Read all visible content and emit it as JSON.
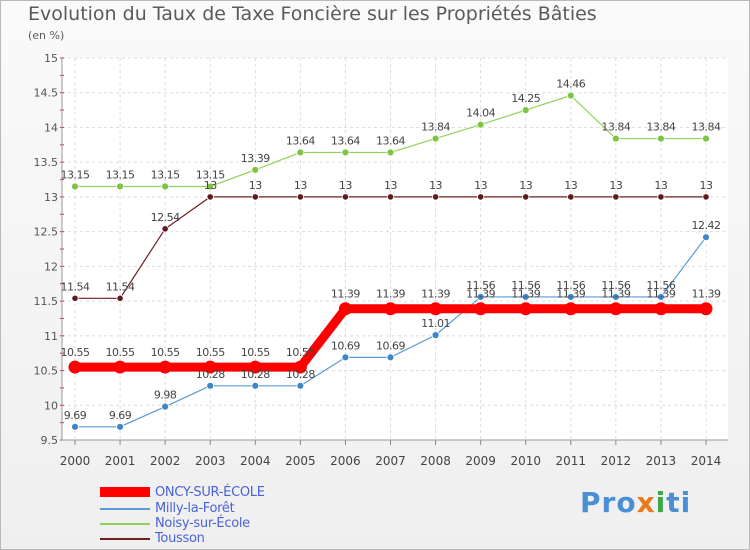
{
  "title": "Evolution du Taux de Taxe Foncière sur les Propriétés Bâties",
  "subtitle": "(en %)",
  "brand": {
    "parts": [
      "Pro",
      "x",
      "i",
      "ti"
    ],
    "colors": [
      "#4a8fd6",
      "#e87a1c",
      "#3aa844",
      "#4a8fd6"
    ]
  },
  "chart_data": {
    "type": "line",
    "title": "Evolution du Taux de Taxe Foncière sur les Propriétés Bâties",
    "ylabel": "(en %)",
    "xlabel": "",
    "ylim": [
      9.5,
      15
    ],
    "yticks": [
      "9.5",
      "10",
      "10.5",
      "11",
      "11.5",
      "12",
      "12.5",
      "13",
      "13.5",
      "14",
      "14.5",
      "15"
    ],
    "ytick_values": [
      9.5,
      10,
      10.5,
      11,
      11.5,
      12,
      12.5,
      13,
      13.5,
      14,
      14.5,
      15
    ],
    "categories": [
      "2000",
      "2001",
      "2002",
      "2003",
      "2004",
      "2005",
      "2006",
      "2007",
      "2008",
      "2009",
      "2010",
      "2011",
      "2012",
      "2013",
      "2014"
    ],
    "grid": true,
    "legend_position": "bottom-left",
    "series": [
      {
        "name": "Noisy-sur-École",
        "color": "#8fd25a",
        "marker": "#7cc443",
        "width": 1.2,
        "radius": 3.5,
        "label_offset": -12,
        "values": [
          13.15,
          13.15,
          13.15,
          13.15,
          13.39,
          13.64,
          13.64,
          13.64,
          13.84,
          14.04,
          14.25,
          14.46,
          13.84,
          13.84,
          13.84
        ],
        "labels": [
          "13.15",
          "13.15",
          "13.15",
          "13.15",
          "13.39",
          "13.64",
          "13.64",
          "13.64",
          "13.84",
          "14.04",
          "14.25",
          "14.46",
          "13.84",
          "13.84",
          "13.84"
        ]
      },
      {
        "name": "Tousson",
        "color": "#6b1f22",
        "marker": "#5e1a1d",
        "width": 1.2,
        "radius": 3.2,
        "label_offset": -12,
        "values": [
          11.54,
          11.54,
          12.54,
          13,
          13,
          13,
          13,
          13,
          13,
          13,
          13,
          13,
          13,
          13,
          13
        ],
        "labels": [
          "11.54",
          "11.54",
          "12.54",
          "13",
          "13",
          "13",
          "13",
          "13",
          "13",
          "13",
          "13",
          "13",
          "13",
          "13",
          "13"
        ]
      },
      {
        "name": "Milly-la-Forêt",
        "color": "#5b9bd5",
        "marker": "#3f86c8",
        "width": 1.2,
        "radius": 3.5,
        "label_offset": -12,
        "values": [
          9.69,
          9.69,
          9.98,
          10.28,
          10.28,
          10.28,
          10.69,
          10.69,
          11.01,
          11.56,
          11.56,
          11.56,
          11.56,
          11.56,
          12.42
        ],
        "labels": [
          "9.69",
          "9.69",
          "9.98",
          "10.28",
          "10.28",
          "10.28",
          "10.69",
          "10.69",
          "11.01",
          "11.56",
          "11.56",
          "11.56",
          "11.56",
          "11.56",
          "12.42"
        ]
      },
      {
        "name": "ONCY-SUR-ÉCOLE",
        "color": "#ff0000",
        "marker": "#ff0000",
        "width": 9,
        "radius": 6.5,
        "label_offset": -15,
        "values": [
          10.55,
          10.55,
          10.55,
          10.55,
          10.55,
          10.55,
          11.39,
          11.39,
          11.39,
          11.39,
          11.39,
          11.39,
          11.39,
          11.39,
          11.39
        ],
        "labels": [
          "10.55",
          "10.55",
          "10.55",
          "10.55",
          "10.55",
          "10.55",
          "11.39",
          "11.39",
          "11.39",
          "11.39",
          "11.39",
          "11.39",
          "11.39",
          "11.39",
          "11.39"
        ]
      }
    ],
    "legend": [
      {
        "name": "ONCY-SUR-ÉCOLE",
        "color": "#ff0000",
        "thick": true
      },
      {
        "name": "Milly-la-Forêt",
        "color": "#5b9bd5",
        "thick": false
      },
      {
        "name": "Noisy-sur-École",
        "color": "#8fd25a",
        "thick": false
      },
      {
        "name": "Tousson",
        "color": "#6b1f22",
        "thick": false
      }
    ]
  }
}
